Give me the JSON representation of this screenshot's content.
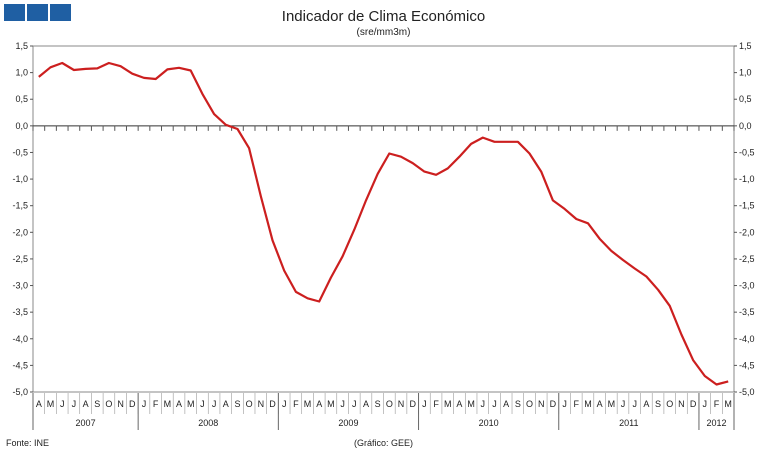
{
  "chart_data": {
    "type": "line",
    "title": "Indicador de Clima Económico",
    "subtitle": "(sre/mm3m)",
    "source": "Fonte: INE",
    "credit": "(Gráfico:  GEE)",
    "ylim": [
      -5.0,
      1.5
    ],
    "yticks": [
      "1,5",
      "1,0",
      "0,5",
      "0,0",
      "-0,5",
      "-1,0",
      "-1,5",
      "-2,0",
      "-2,5",
      "-3,0",
      "-3,5",
      "-4,0",
      "-4,5",
      "-5,0"
    ],
    "grid": false,
    "x_months": [
      "A",
      "M",
      "J",
      "J",
      "A",
      "S",
      "O",
      "N",
      "D",
      "J",
      "F",
      "M",
      "A",
      "M",
      "J",
      "J",
      "A",
      "S",
      "O",
      "N",
      "D",
      "J",
      "F",
      "M",
      "A",
      "M",
      "J",
      "J",
      "A",
      "S",
      "O",
      "N",
      "D",
      "J",
      "F",
      "M",
      "A",
      "M",
      "J",
      "J",
      "A",
      "S",
      "O",
      "N",
      "D",
      "J",
      "F",
      "M",
      "A",
      "M",
      "J",
      "J",
      "A",
      "S",
      "O",
      "N",
      "D",
      "J",
      "F",
      "M"
    ],
    "years": [
      {
        "label": "2007",
        "start": 0,
        "count": 9
      },
      {
        "label": "2008",
        "start": 9,
        "count": 12
      },
      {
        "label": "2009",
        "start": 21,
        "count": 12
      },
      {
        "label": "2010",
        "start": 33,
        "count": 12
      },
      {
        "label": "2011",
        "start": 45,
        "count": 12
      },
      {
        "label": "2012",
        "start": 57,
        "count": 3
      }
    ],
    "series": [
      {
        "color": "#cc1f1f",
        "values": [
          0.92,
          1.1,
          1.18,
          1.05,
          1.07,
          1.08,
          1.18,
          1.12,
          0.98,
          0.9,
          0.88,
          1.06,
          1.09,
          1.04,
          0.6,
          0.22,
          0.02,
          -0.06,
          -0.42,
          -1.32,
          -2.15,
          -2.72,
          -3.12,
          -3.24,
          -3.3,
          -2.85,
          -2.45,
          -1.95,
          -1.4,
          -0.9,
          -0.52,
          -0.58,
          -0.7,
          -0.86,
          -0.92,
          -0.8,
          -0.58,
          -0.34,
          -0.22,
          -0.3,
          -0.3,
          -0.3,
          -0.52,
          -0.86,
          -1.4,
          -1.56,
          -1.75,
          -1.83,
          -2.12,
          -2.35,
          -2.52,
          -2.68,
          -2.83,
          -3.08,
          -3.38,
          -3.92,
          -4.4,
          -4.7,
          -4.86,
          -4.8
        ]
      }
    ]
  }
}
